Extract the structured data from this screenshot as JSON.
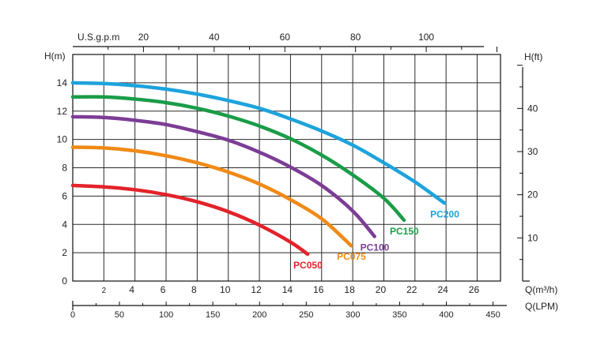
{
  "chart_data": {
    "type": "line",
    "title": "",
    "y_left": {
      "label": "H(m)",
      "ticks": [
        0,
        2,
        4,
        6,
        8,
        10,
        12,
        14
      ],
      "range": [
        0,
        16
      ]
    },
    "y_right": {
      "label": "H(ft)",
      "ticks": [
        10,
        20,
        30,
        40
      ],
      "range": [
        0,
        52.5
      ]
    },
    "x_m3h": {
      "label": "Q(m³/h)",
      "ticks": [
        2,
        4,
        6,
        8,
        10,
        12,
        14,
        16,
        18,
        20,
        22,
        24,
        26
      ],
      "range": [
        0,
        27.5
      ]
    },
    "x_usgpm": {
      "label": "U.S.g.p.m",
      "ticks": [
        20,
        40,
        60,
        80,
        100
      ],
      "range": [
        0,
        121
      ]
    },
    "x_lpm": {
      "label": "Q(LPM)",
      "ticks": [
        0,
        50,
        100,
        150,
        200,
        250,
        300,
        350,
        400,
        450
      ],
      "range": [
        0,
        458
      ]
    },
    "grid": true,
    "series": [
      {
        "name": "PC050",
        "color": "#e3222a",
        "points": [
          [
            0,
            6.75
          ],
          [
            2,
            6.65
          ],
          [
            4,
            6.45
          ],
          [
            6,
            6.1
          ],
          [
            8,
            5.6
          ],
          [
            10,
            4.9
          ],
          [
            12,
            3.95
          ],
          [
            14,
            2.75
          ],
          [
            15.1,
            1.9
          ]
        ]
      },
      {
        "name": "PC075",
        "color": "#f08a16",
        "points": [
          [
            0,
            9.45
          ],
          [
            2,
            9.4
          ],
          [
            4,
            9.2
          ],
          [
            6,
            8.85
          ],
          [
            8,
            8.35
          ],
          [
            10,
            7.7
          ],
          [
            12,
            6.85
          ],
          [
            14,
            5.75
          ],
          [
            16,
            4.4
          ],
          [
            17.9,
            2.5
          ]
        ]
      },
      {
        "name": "PC100",
        "color": "#7c3d96",
        "points": [
          [
            0,
            11.6
          ],
          [
            2,
            11.55
          ],
          [
            4,
            11.35
          ],
          [
            6,
            11.05
          ],
          [
            8,
            10.55
          ],
          [
            10,
            9.95
          ],
          [
            12,
            9.1
          ],
          [
            14,
            8.05
          ],
          [
            16,
            6.75
          ],
          [
            18,
            4.95
          ],
          [
            19.4,
            3.15
          ]
        ]
      },
      {
        "name": "PC150",
        "color": "#1a9c48",
        "points": [
          [
            0,
            13.0
          ],
          [
            2,
            13.0
          ],
          [
            4,
            12.85
          ],
          [
            6,
            12.6
          ],
          [
            8,
            12.2
          ],
          [
            10,
            11.65
          ],
          [
            12,
            10.95
          ],
          [
            14,
            10.05
          ],
          [
            16,
            8.9
          ],
          [
            18,
            7.5
          ],
          [
            20,
            5.85
          ],
          [
            21.3,
            4.3
          ]
        ]
      },
      {
        "name": "PC200",
        "color": "#1da3dd",
        "points": [
          [
            0,
            14.0
          ],
          [
            2,
            13.95
          ],
          [
            4,
            13.8
          ],
          [
            6,
            13.55
          ],
          [
            8,
            13.2
          ],
          [
            10,
            12.75
          ],
          [
            12,
            12.2
          ],
          [
            14,
            11.45
          ],
          [
            16,
            10.6
          ],
          [
            18,
            9.6
          ],
          [
            20,
            8.35
          ],
          [
            22,
            7.0
          ],
          [
            23.9,
            5.5
          ]
        ]
      }
    ]
  }
}
